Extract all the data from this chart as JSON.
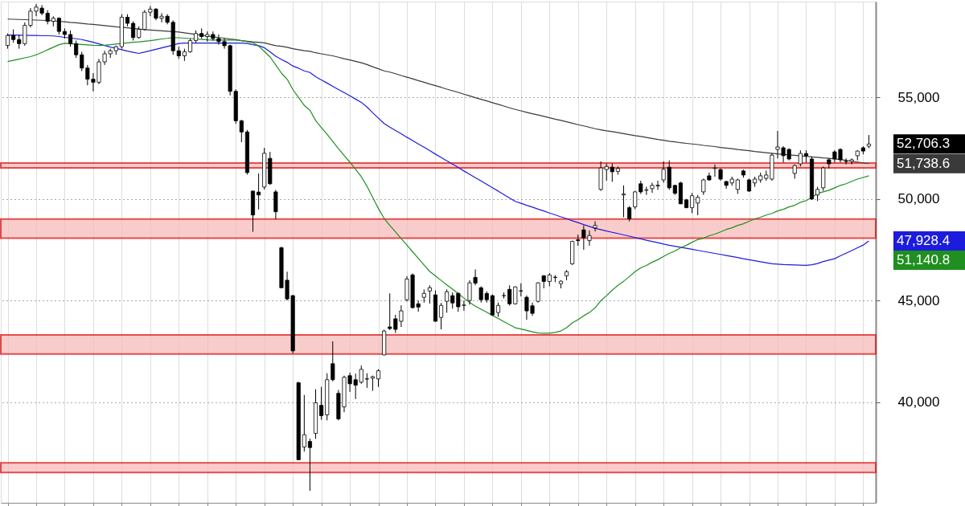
{
  "chart_data": {
    "type": "candlestick",
    "categories": [
      null,
      null,
      null,
      null,
      null,
      null,
      null,
      null,
      null,
      null,
      null,
      null,
      null,
      null,
      null,
      null,
      null,
      null,
      null,
      null,
      null,
      null,
      null,
      null,
      null,
      null,
      null,
      null,
      null,
      null,
      null,
      null,
      null,
      null,
      null,
      null,
      null,
      null,
      null,
      null,
      null,
      null,
      null,
      null,
      null,
      null,
      null,
      null,
      null,
      null,
      null,
      null,
      null,
      null,
      null,
      null,
      null,
      null,
      null,
      null,
      null,
      null,
      null,
      null,
      null,
      null,
      null,
      null,
      null,
      null,
      null,
      null,
      null,
      null,
      null,
      null,
      null,
      null,
      null,
      null,
      null,
      null,
      null,
      null,
      null,
      null,
      null,
      null,
      null,
      null,
      null,
      null,
      null,
      null,
      null,
      null,
      null,
      null,
      null,
      null,
      null,
      null,
      null,
      null,
      null,
      null,
      null,
      null,
      null,
      null,
      null,
      null,
      null,
      null,
      null,
      null,
      null,
      null,
      null,
      null,
      null,
      null,
      null,
      null,
      null,
      null,
      null,
      null,
      null,
      null,
      null,
      null,
      null,
      null,
      null,
      null,
      null,
      null,
      null,
      null,
      null,
      null,
      null,
      null,
      null,
      null,
      null,
      null,
      null,
      null,
      null,
      null
    ],
    "ohlc": [
      [
        57560,
        58150,
        57400,
        58050
      ],
      [
        58050,
        58350,
        57700,
        57850
      ],
      [
        57850,
        58100,
        57400,
        57650
      ],
      [
        57650,
        58700,
        57550,
        58550
      ],
      [
        58550,
        59400,
        58450,
        59250
      ],
      [
        59250,
        59600,
        59000,
        59450
      ],
      [
        59400,
        59550,
        59050,
        59150
      ],
      [
        59150,
        59300,
        58600,
        58750
      ],
      [
        58750,
        59000,
        58500,
        58900
      ],
      [
        58900,
        58950,
        58100,
        58250
      ],
      [
        58250,
        58400,
        57900,
        58100
      ],
      [
        58100,
        58300,
        57500,
        57650
      ],
      [
        57650,
        57800,
        56950,
        57100
      ],
      [
        57100,
        57250,
        56300,
        56450
      ],
      [
        56450,
        56600,
        55600,
        55900
      ],
      [
        55900,
        56200,
        55300,
        55750
      ],
      [
        55750,
        56900,
        55650,
        56750
      ],
      [
        56750,
        57300,
        56600,
        57150
      ],
      [
        57150,
        57400,
        56950,
        57300
      ],
      [
        57300,
        57550,
        57100,
        57500
      ],
      [
        57500,
        59100,
        57400,
        58950
      ],
      [
        58950,
        59100,
        58500,
        58650
      ],
      [
        58650,
        58750,
        57800,
        57950
      ],
      [
        57950,
        58500,
        57900,
        58350
      ],
      [
        58350,
        59300,
        58300,
        59200
      ],
      [
        59200,
        59500,
        59000,
        59350
      ],
      [
        59350,
        59400,
        58800,
        58900
      ],
      [
        58900,
        59150,
        58700,
        59000
      ],
      [
        59000,
        59100,
        58600,
        58700
      ],
      [
        58700,
        58800,
        57100,
        57300
      ],
      [
        57300,
        57500,
        56900,
        57050
      ],
      [
        57050,
        57400,
        56800,
        57250
      ],
      [
        57250,
        57900,
        57200,
        57800
      ],
      [
        57800,
        58300,
        57700,
        58150
      ],
      [
        58150,
        58400,
        57900,
        58000
      ],
      [
        58000,
        58250,
        57750,
        58100
      ],
      [
        58100,
        58250,
        57800,
        57900
      ],
      [
        57900,
        58100,
        57600,
        57750
      ],
      [
        57750,
        57900,
        57400,
        57550
      ],
      [
        57550,
        57600,
        55100,
        55300
      ],
      [
        55300,
        55400,
        53700,
        53850
      ],
      [
        53850,
        53900,
        52800,
        53300
      ],
      [
        53300,
        53400,
        51200,
        51300
      ],
      [
        50390,
        50400,
        48385,
        49210
      ],
      [
        50340,
        51260,
        49490,
        50200
      ],
      [
        50590,
        52520,
        50470,
        52250
      ],
      [
        52000,
        52320,
        50700,
        50750
      ],
      [
        50350,
        50450,
        49000,
        49370
      ],
      [
        47600,
        47650,
        45600,
        45630
      ],
      [
        46000,
        46420,
        45000,
        45080
      ],
      [
        45240,
        45280,
        42400,
        42520
      ],
      [
        40950,
        41000,
        37150,
        37160
      ],
      [
        37790,
        40350,
        37560,
        38390
      ],
      [
        38060,
        38200,
        35630,
        37760
      ],
      [
        38460,
        40630,
        38190,
        39960
      ],
      [
        39840,
        40750,
        39130,
        39330
      ],
      [
        39370,
        41420,
        39100,
        41100
      ],
      [
        41890,
        42990,
        41020,
        41100
      ],
      [
        40430,
        40600,
        39100,
        39170
      ],
      [
        39760,
        41300,
        39500,
        41220
      ],
      [
        41300,
        41450,
        40500,
        40900
      ],
      [
        41100,
        41400,
        40150,
        40830
      ],
      [
        40980,
        41800,
        40900,
        41610
      ],
      [
        41130,
        41420,
        40700,
        41150
      ],
      [
        41180,
        41300,
        40550,
        41250
      ],
      [
        41140,
        41620,
        40750,
        41540
      ],
      [
        42320,
        43560,
        42300,
        43500
      ],
      [
        43700,
        45350,
        43550,
        43620
      ],
      [
        44100,
        44300,
        43400,
        43580
      ],
      [
        43980,
        44760,
        43700,
        44490
      ],
      [
        45040,
        46200,
        44950,
        46060
      ],
      [
        46260,
        46340,
        44600,
        44650
      ],
      [
        44840,
        45000,
        44450,
        44680
      ],
      [
        45160,
        45550,
        44900,
        45350
      ],
      [
        45470,
        45750,
        44850,
        45630
      ],
      [
        45280,
        45500,
        43950,
        43980
      ],
      [
        44170,
        44880,
        43580,
        44760
      ],
      [
        44960,
        45550,
        44400,
        45430
      ],
      [
        45240,
        45400,
        44600,
        44880
      ],
      [
        45350,
        45400,
        44450,
        44690
      ],
      [
        44760,
        45000,
        44500,
        44780
      ],
      [
        45000,
        46000,
        44800,
        45870
      ],
      [
        46140,
        46530,
        45750,
        45860
      ],
      [
        45630,
        45700,
        44900,
        45040
      ],
      [
        45350,
        45450,
        44900,
        45040
      ],
      [
        45240,
        45300,
        44250,
        44290
      ],
      [
        44410,
        44900,
        44200,
        44760
      ],
      [
        45240,
        45400,
        45100,
        45240
      ],
      [
        45550,
        45750,
        44750,
        44840
      ],
      [
        44840,
        45700,
        44800,
        45670
      ],
      [
        45480,
        45850,
        45200,
        45470
      ],
      [
        45160,
        45250,
        44050,
        44490
      ],
      [
        44740,
        44900,
        44250,
        44370
      ],
      [
        44960,
        45900,
        44900,
        45870
      ],
      [
        46220,
        46250,
        45600,
        45940
      ],
      [
        45940,
        46350,
        45700,
        46260
      ],
      [
        46150,
        46250,
        45900,
        46140
      ],
      [
        45830,
        46000,
        45600,
        45950
      ],
      [
        46220,
        46500,
        46000,
        46420
      ],
      [
        46810,
        47950,
        46750,
        47910
      ],
      [
        47990,
        48250,
        47700,
        47950
      ],
      [
        48480,
        48700,
        47500,
        48090
      ],
      [
        47950,
        48450,
        47700,
        48200
      ],
      [
        48580,
        48900,
        48400,
        48700
      ],
      [
        50470,
        51850,
        50400,
        51530
      ],
      [
        51450,
        51750,
        50900,
        51600
      ],
      [
        51570,
        51750,
        50850,
        51340
      ],
      [
        51360,
        51600,
        51200,
        51500
      ],
      [
        50200,
        50670,
        49100,
        50250
      ],
      [
        49570,
        49650,
        48900,
        49020
      ],
      [
        49610,
        50400,
        49500,
        50350
      ],
      [
        50750,
        50900,
        50250,
        50350
      ],
      [
        50430,
        50600,
        50200,
        50450
      ],
      [
        50510,
        50800,
        50300,
        50670
      ],
      [
        50640,
        50900,
        50450,
        50680
      ],
      [
        50940,
        51850,
        50800,
        51460
      ],
      [
        51570,
        51900,
        50450,
        50550
      ],
      [
        50670,
        50700,
        50200,
        50280
      ],
      [
        50790,
        50850,
        49750,
        49760
      ],
      [
        49960,
        50000,
        49550,
        49570
      ],
      [
        49570,
        50300,
        49300,
        50160
      ],
      [
        49800,
        50200,
        49200,
        50080
      ],
      [
        50350,
        51000,
        50200,
        50940
      ],
      [
        51140,
        51300,
        50900,
        50940
      ],
      [
        51500,
        51700,
        51100,
        51530
      ],
      [
        51450,
        51500,
        50900,
        50980
      ],
      [
        50860,
        50900,
        50500,
        50670
      ],
      [
        50790,
        51100,
        50650,
        50980
      ],
      [
        50470,
        51000,
        50250,
        50940
      ],
      [
        51380,
        51450,
        51050,
        51180
      ],
      [
        50940,
        51000,
        50350,
        50390
      ],
      [
        50790,
        51100,
        50600,
        50980
      ],
      [
        50940,
        51300,
        50800,
        51140
      ],
      [
        51020,
        51400,
        50900,
        51180
      ],
      [
        50980,
        52250,
        50900,
        52160
      ],
      [
        52440,
        53350,
        52000,
        52560
      ],
      [
        52520,
        52600,
        51800,
        52130
      ],
      [
        52440,
        52500,
        51900,
        51970
      ],
      [
        51260,
        51700,
        51000,
        51650
      ],
      [
        51730,
        52400,
        51600,
        52240
      ],
      [
        52240,
        52400,
        51800,
        52130
      ],
      [
        51970,
        52100,
        49950,
        50000
      ],
      [
        50200,
        50600,
        49900,
        50470
      ],
      [
        50550,
        51600,
        50400,
        51530
      ],
      [
        51930,
        52000,
        51500,
        51730
      ],
      [
        52320,
        52400,
        51800,
        51970
      ],
      [
        52440,
        52500,
        51800,
        51930
      ],
      [
        51850,
        52000,
        51700,
        51850
      ],
      [
        51850,
        52000,
        51700,
        51930
      ],
      [
        52130,
        52400,
        51900,
        52360
      ],
      [
        52520,
        52600,
        52200,
        52360
      ],
      [
        52600,
        53150,
        52500,
        52706
      ]
    ],
    "series": [
      {
        "type": "line",
        "color": "#3a3a3a",
        "values": [
          58860,
          58850,
          58840,
          58830,
          58820,
          58810,
          58800,
          58790,
          58770,
          58750,
          58730,
          58700,
          58680,
          58650,
          58620,
          58600,
          58570,
          58540,
          58510,
          58480,
          58460,
          58430,
          58400,
          58370,
          58340,
          58320,
          58300,
          58280,
          58260,
          58240,
          58220,
          58180,
          58140,
          58100,
          58060,
          58020,
          57990,
          57950,
          57920,
          57880,
          57850,
          57800,
          57770,
          57740,
          57720,
          57690,
          57620,
          57550,
          57520,
          57470,
          57400,
          57350,
          57300,
          57270,
          57200,
          57150,
          57100,
          57050,
          56980,
          56910,
          56850,
          56780,
          56710,
          56620,
          56510,
          56410,
          56310,
          56250,
          56170,
          56080,
          56000,
          55920,
          55830,
          55750,
          55660,
          55580,
          55500,
          55410,
          55330,
          55250,
          55160,
          55080,
          54990,
          54910,
          54830,
          54740,
          54660,
          54580,
          54490,
          54410,
          54340,
          54270,
          54200,
          54140,
          54070,
          54000,
          53930,
          53870,
          53800,
          53730,
          53660,
          53600,
          53530,
          53460,
          53410,
          53360,
          53320,
          53270,
          53220,
          53170,
          53120,
          53080,
          53030,
          52980,
          52930,
          52890,
          52840,
          52810,
          52770,
          52740,
          52710,
          52680,
          52640,
          52610,
          52580,
          52540,
          52510,
          52480,
          52440,
          52410,
          52380,
          52340,
          52310,
          52280,
          52250,
          52220,
          52200,
          52170,
          52150,
          52120,
          52100,
          52070,
          52050,
          52020,
          52000,
          51970,
          51940,
          51900,
          51860,
          51820,
          51780,
          51740
        ]
      },
      {
        "type": "line",
        "color": "#1c1cdc",
        "values": [
          58070,
          58070,
          58060,
          58060,
          58050,
          58050,
          58040,
          58040,
          58030,
          58000,
          57960,
          57930,
          57890,
          57850,
          57790,
          57720,
          57640,
          57560,
          57480,
          57420,
          57350,
          57280,
          57220,
          57170,
          57230,
          57300,
          57370,
          57440,
          57510,
          57580,
          57660,
          57680,
          57680,
          57680,
          57680,
          57680,
          57680,
          57680,
          57680,
          57680,
          57680,
          57680,
          57660,
          57600,
          57550,
          57450,
          57250,
          57030,
          56870,
          56730,
          56550,
          56440,
          56310,
          56230,
          56020,
          55860,
          55710,
          55550,
          55390,
          55240,
          55080,
          54920,
          54760,
          54530,
          54250,
          53980,
          53720,
          53540,
          53370,
          53210,
          53040,
          52880,
          52710,
          52550,
          52380,
          52210,
          52050,
          51880,
          51720,
          51550,
          51380,
          51220,
          51050,
          50890,
          50720,
          50550,
          50390,
          50220,
          50050,
          49880,
          49790,
          49690,
          49600,
          49500,
          49410,
          49310,
          49220,
          49120,
          49030,
          48930,
          48840,
          48740,
          48650,
          48550,
          48490,
          48420,
          48360,
          48300,
          48230,
          48170,
          48100,
          48040,
          47970,
          47910,
          47850,
          47780,
          47720,
          47670,
          47620,
          47570,
          47520,
          47470,
          47420,
          47370,
          47320,
          47270,
          47220,
          47170,
          47120,
          47060,
          47010,
          46960,
          46910,
          46860,
          46810,
          46790,
          46770,
          46760,
          46750,
          46740,
          46730,
          46760,
          46820,
          46920,
          46990,
          47060,
          47200,
          47330,
          47460,
          47600,
          47730,
          47930
        ]
      },
      {
        "type": "line",
        "color": "#1f8f1f",
        "values": [
          56770,
          56830,
          56890,
          56950,
          57010,
          57100,
          57220,
          57350,
          57470,
          57600,
          57670,
          57650,
          57630,
          57610,
          57590,
          57570,
          57560,
          57570,
          57600,
          57630,
          57660,
          57690,
          57720,
          57740,
          57770,
          57800,
          57840,
          57880,
          57910,
          57950,
          57940,
          57920,
          57900,
          57880,
          57860,
          57840,
          57830,
          57830,
          57830,
          57830,
          57830,
          57800,
          57750,
          57700,
          57530,
          57270,
          57000,
          56600,
          56200,
          55900,
          55390,
          55000,
          54610,
          54370,
          53860,
          53520,
          53190,
          52830,
          52480,
          52140,
          51810,
          51460,
          51100,
          50630,
          50080,
          49530,
          49050,
          48700,
          48380,
          48050,
          47730,
          47400,
          47080,
          46750,
          46430,
          46210,
          45990,
          45770,
          45560,
          45340,
          45120,
          44910,
          44720,
          44570,
          44420,
          44270,
          44120,
          43960,
          43810,
          43660,
          43600,
          43530,
          43460,
          43400,
          43390,
          43390,
          43430,
          43500,
          43660,
          43900,
          44060,
          44250,
          44410,
          44640,
          44990,
          45240,
          45510,
          45750,
          45950,
          46180,
          46420,
          46610,
          46730,
          46890,
          47010,
          47170,
          47320,
          47440,
          47600,
          47720,
          47870,
          48000,
          48070,
          48190,
          48270,
          48380,
          48500,
          48580,
          48700,
          48780,
          48900,
          49020,
          49100,
          49210,
          49290,
          49410,
          49490,
          49610,
          49690,
          49840,
          49920,
          50080,
          50270,
          50350,
          50430,
          50550,
          50670,
          50750,
          50870,
          50980,
          51060,
          51140
        ]
      }
    ],
    "ylim": [
      35040,
      59720
    ],
    "yticks": [
      {
        "value": 40000,
        "label": "40,000"
      },
      {
        "value": 45000,
        "label": "45,000"
      },
      {
        "value": 50000,
        "label": "50,000"
      },
      {
        "value": 55000,
        "label": "55,000"
      }
    ],
    "grid": "y",
    "tick_labels": "y",
    "bands": [
      {
        "axis": "y",
        "from": 48070,
        "to": 49015,
        "color": "#f7bcbc"
      },
      {
        "axis": "y",
        "from": 42362,
        "to": 43307,
        "color": "#f7bcbc"
      },
      {
        "axis": "y",
        "from": 36535,
        "to": 37008,
        "color": "#f7bcbc"
      },
      {
        "axis": "y",
        "from": 51535,
        "to": 51772,
        "color": "#f7bcbc"
      }
    ],
    "annotations": [
      "52,706.3",
      "51,738.6",
      "47,928.4",
      "51,140.8"
    ]
  }
}
